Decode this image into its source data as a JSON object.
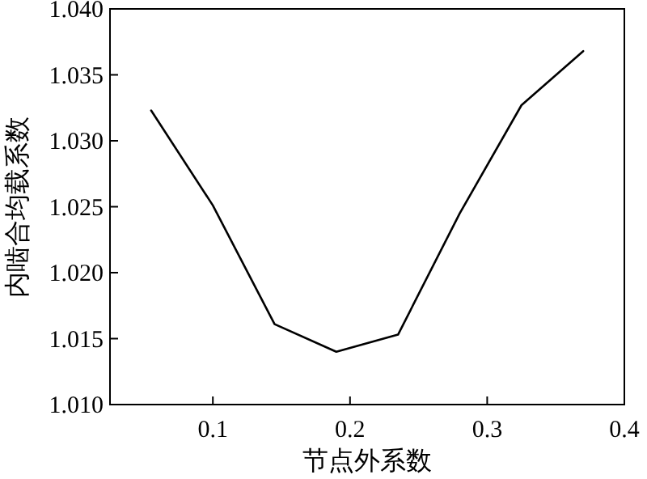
{
  "chart_data": {
    "type": "line",
    "xlabel": "节点外系数",
    "ylabel": "内啮合均载系数",
    "x": [
      0.055,
      0.1,
      0.145,
      0.19,
      0.235,
      0.28,
      0.325,
      0.37
    ],
    "series": [
      {
        "color": "#000000",
        "values": [
          1.0323,
          1.0251,
          1.0161,
          1.014,
          1.0153,
          1.0245,
          1.0327,
          1.0368
        ]
      }
    ],
    "xlim": [
      0.025,
      0.4
    ],
    "xticks": [
      0.1,
      0.2,
      0.3,
      0.4
    ],
    "ylim": [
      1.01,
      1.04
    ],
    "yticks": [
      {
        "value": 1.01,
        "label": "1.010"
      },
      {
        "value": 1.015,
        "label": "1.015"
      },
      {
        "value": 1.02,
        "label": "1.020"
      },
      {
        "value": 1.025,
        "label": "1.025"
      },
      {
        "value": 1.03,
        "label": "1.030"
      },
      {
        "value": 1.035,
        "label": "1.035"
      },
      {
        "value": 1.04,
        "label": "1.040"
      }
    ],
    "grid": false,
    "marker": "none",
    "line_style": "solid"
  }
}
